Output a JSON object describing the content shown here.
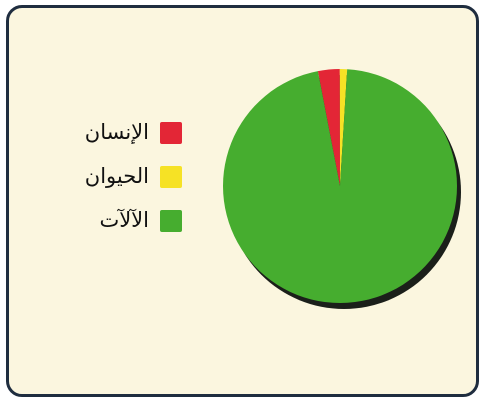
{
  "chart_data": {
    "type": "pie",
    "categories": [
      "الإنسان",
      "الحيوان",
      "الآلآت"
    ],
    "values": [
      3,
      1,
      96
    ],
    "colors": [
      "#e32636",
      "#f6e225",
      "#46ad2f"
    ],
    "legend_position": "left",
    "title": ""
  },
  "legend": {
    "items": [
      {
        "label": "الإنسان",
        "color": "#e32636"
      },
      {
        "label": "الحيوان",
        "color": "#f6e225"
      },
      {
        "label": "الآلآت",
        "color": "#46ad2f"
      }
    ]
  }
}
